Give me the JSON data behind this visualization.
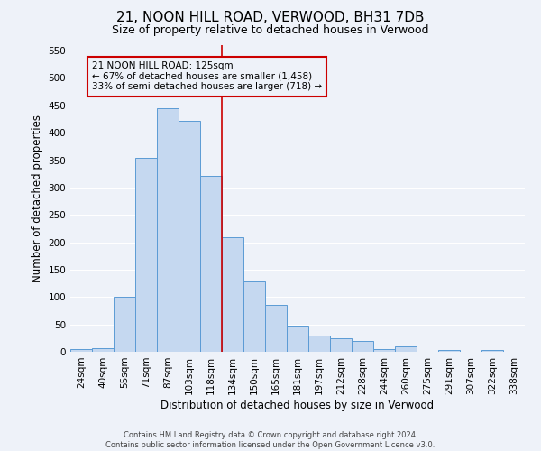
{
  "title": "21, NOON HILL ROAD, VERWOOD, BH31 7DB",
  "subtitle": "Size of property relative to detached houses in Verwood",
  "xlabel": "Distribution of detached houses by size in Verwood",
  "ylabel": "Number of detached properties",
  "bar_labels": [
    "24sqm",
    "40sqm",
    "55sqm",
    "71sqm",
    "87sqm",
    "103sqm",
    "118sqm",
    "134sqm",
    "150sqm",
    "165sqm",
    "181sqm",
    "197sqm",
    "212sqm",
    "228sqm",
    "244sqm",
    "260sqm",
    "275sqm",
    "291sqm",
    "307sqm",
    "322sqm",
    "338sqm"
  ],
  "bar_heights": [
    5,
    6,
    101,
    354,
    444,
    421,
    322,
    209,
    128,
    85,
    48,
    29,
    25,
    19,
    5,
    10,
    0,
    3,
    0,
    3,
    0
  ],
  "bar_color": "#c5d8f0",
  "bar_edge_color": "#5b9bd5",
  "vline_color": "#cc0000",
  "annotation_line1": "21 NOON HILL ROAD: 125sqm",
  "annotation_line2": "← 67% of detached houses are smaller (1,458)",
  "annotation_line3": "33% of semi-detached houses are larger (718) →",
  "annotation_box_edge_color": "#cc0000",
  "ylim": [
    0,
    560
  ],
  "yticks": [
    0,
    50,
    100,
    150,
    200,
    250,
    300,
    350,
    400,
    450,
    500,
    550
  ],
  "footer_line1": "Contains HM Land Registry data © Crown copyright and database right 2024.",
  "footer_line2": "Contains public sector information licensed under the Open Government Licence v3.0.",
  "bg_color": "#eef2f9",
  "grid_color": "#ffffff",
  "title_fontsize": 11,
  "subtitle_fontsize": 9,
  "axis_label_fontsize": 8.5,
  "tick_fontsize": 7.5,
  "footer_fontsize": 6
}
